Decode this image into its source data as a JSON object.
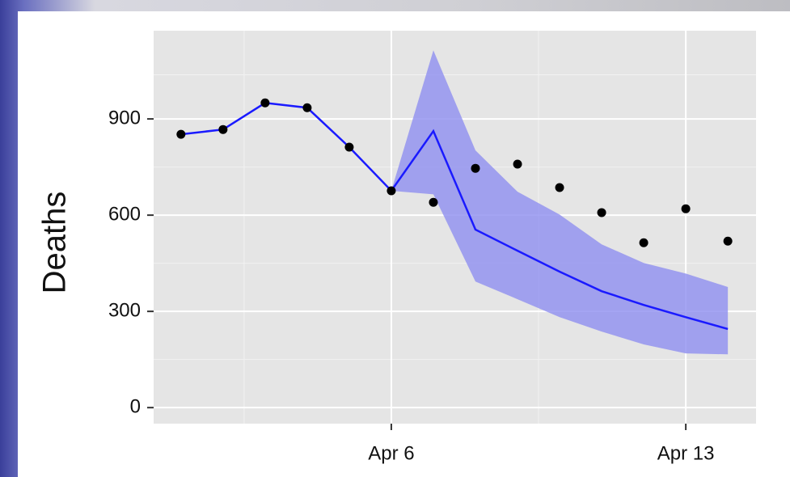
{
  "chart_data": {
    "type": "line",
    "y_label": "Deaths",
    "x": [
      1,
      2,
      3,
      4,
      5,
      6,
      7,
      8,
      9,
      10,
      11,
      12,
      13,
      14
    ],
    "observed": {
      "color": "#000000",
      "values": [
        852,
        867,
        950,
        935,
        812,
        676,
        640,
        746,
        759,
        686,
        608,
        514,
        620,
        519
      ]
    },
    "fitted": {
      "color": "#1a1aff",
      "values": [
        852,
        867,
        950,
        935,
        812,
        676,
        862,
        555,
        489,
        424,
        363,
        320,
        282,
        245
      ]
    },
    "band": {
      "color": "#8f8ff0",
      "upper": [
        null,
        null,
        null,
        null,
        null,
        676,
        1114,
        802,
        673,
        602,
        509,
        451,
        418,
        376
      ],
      "lower": [
        null,
        null,
        null,
        null,
        null,
        676,
        665,
        393,
        338,
        282,
        237,
        197,
        169,
        166
      ]
    },
    "xlim": [
      0.35,
      14.67
    ],
    "ylim": [
      -50,
      1175
    ],
    "xticks": [
      {
        "value": 6,
        "label": "Apr 6"
      },
      {
        "value": 13,
        "label": "Apr 13"
      }
    ],
    "yticks": [
      0,
      300,
      600,
      900
    ],
    "grid": true
  }
}
